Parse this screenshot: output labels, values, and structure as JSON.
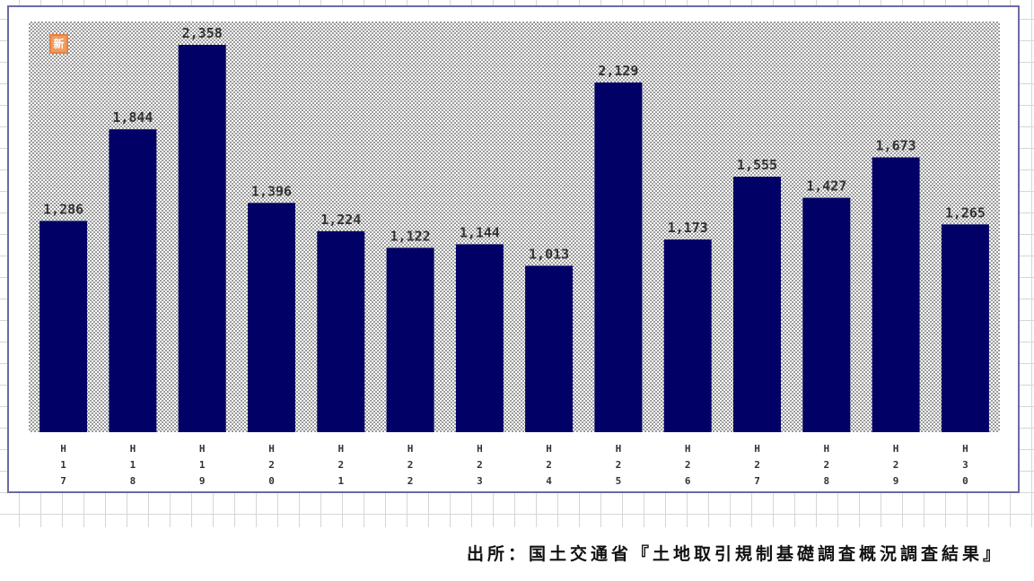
{
  "badge_text": "新",
  "source_note": "出所：国土交通省『土地取引規制基礎調査概況調査結果』",
  "colors": {
    "bar": "#000066",
    "plot_dots": "#9a9a9a",
    "frame": "#6a6aa8",
    "badge": "#f19a5e"
  },
  "chart_data": {
    "type": "bar",
    "categories": [
      "H17",
      "H18",
      "H19",
      "H20",
      "H21",
      "H22",
      "H23",
      "H24",
      "H25",
      "H26",
      "H27",
      "H28",
      "H29",
      "H30"
    ],
    "values": [
      1286,
      1844,
      2358,
      1396,
      1224,
      1122,
      1144,
      1013,
      2129,
      1173,
      1555,
      1427,
      1673,
      1265
    ],
    "value_labels": [
      "1,286",
      "1,844",
      "2,358",
      "1,396",
      "1,224",
      "1,122",
      "1,144",
      "1,013",
      "2,129",
      "1,173",
      "1,555",
      "1,427",
      "1,673",
      "1,265"
    ],
    "ylim": [
      0,
      2500
    ],
    "grid": false,
    "legend": "none"
  }
}
